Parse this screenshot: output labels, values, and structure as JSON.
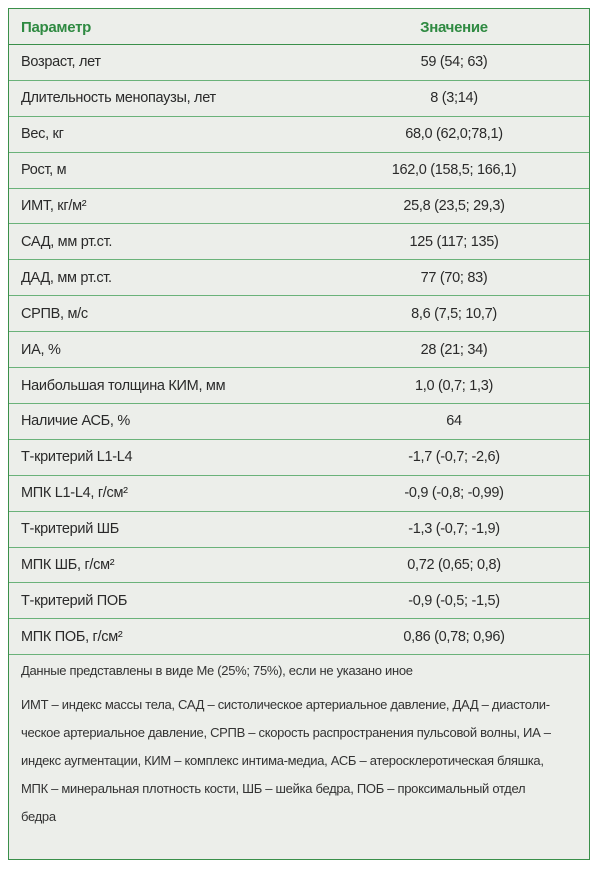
{
  "header": {
    "columns": [
      "Параметр",
      "Значение"
    ]
  },
  "table": {
    "rows": [
      [
        "Возраст, лет",
        "59 (54; 63)"
      ],
      [
        "Длительность менопаузы, лет",
        "8 (3;14)"
      ],
      [
        "Вес, кг",
        "68,0 (62,0;78,1)"
      ],
      [
        "Рост, м",
        "162,0 (158,5; 166,1)"
      ],
      [
        "ИМТ, кг/м²",
        "25,8 (23,5; 29,3)"
      ],
      [
        "САД, мм рт.ст.",
        "125 (117; 135)"
      ],
      [
        "ДАД, мм рт.ст.",
        "77 (70; 83)"
      ],
      [
        "СРПВ, м/с",
        "8,6 (7,5; 10,7)"
      ],
      [
        "ИА, %",
        "28 (21; 34)"
      ],
      [
        "Наибольшая толщина КИМ, мм",
        "1,0 (0,7; 1,3)"
      ],
      [
        "Наличие АСБ, %",
        "64"
      ],
      [
        "Т-критерий L1-L4",
        "-1,7 (-0,7; -2,6)"
      ],
      [
        "МПК L1-L4, г/см²",
        "-0,9 (-0,8; -0,99)"
      ],
      [
        "Т-критерий ШБ",
        "-1,3 (-0,7; -1,9)"
      ],
      [
        "МПК ШБ, г/см²",
        "0,72 (0,65; 0,8)"
      ],
      [
        "Т-критерий ПОБ",
        "-0,9 (-0,5; -1,5)"
      ],
      [
        "МПК ПОБ, г/см²",
        "0,86 (0,78; 0,96)"
      ]
    ]
  },
  "notes": {
    "data_format": "Данные представлены в виде Me (25%; 75%), если не указано иное",
    "abbreviations": [
      "ИМТ – индекс массы тела, САД – систолическое артериальное давление, ДАД – диастоли-",
      "ческое артериальное давление, СРПВ – скорость распространения пульсовой волны, ИА –",
      "индекс аугментации, КИМ – комплекс интима-медиа, АСБ – атеросклеротическая бляшка,",
      "МПК – минеральная плотность кости, ШБ – шейка бедра, ПОБ – проксимальный отдел",
      "бедра"
    ]
  }
}
